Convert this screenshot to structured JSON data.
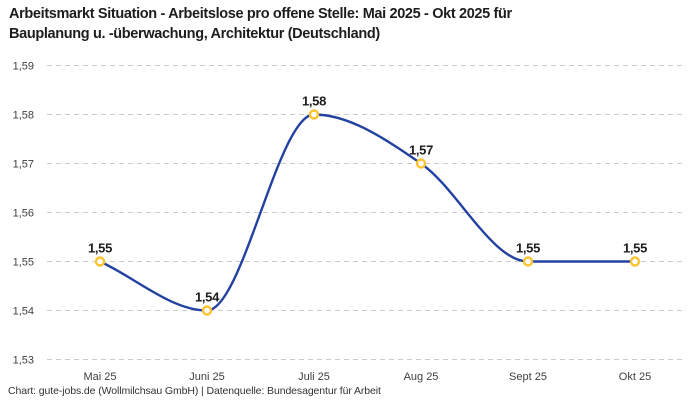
{
  "title_lines": [
    "Arbeitsmarkt Situation - Arbeitslose pro offene Stelle: Mai 2025 - Okt 2025 für",
    "Bauplanung u. -überwachung, Architektur (Deutschland)"
  ],
  "footer": {
    "text": "Chart: gute-jobs.de (Wollmilchsau GmbH) | Datenquelle: Bundesagentur für Arbeit"
  },
  "chart_data": {
    "type": "line",
    "title": "Arbeitsmarkt Situation - Arbeitslose pro offene Stelle: Mai 2025 - Okt 2025 für Bauplanung u. -überwachung, Architektur (Deutschland)",
    "categories": [
      "Mai 25",
      "Juni 25",
      "Juli 25",
      "Aug 25",
      "Sept 25",
      "Okt 25"
    ],
    "values": [
      1.55,
      1.54,
      1.58,
      1.57,
      1.55,
      1.55
    ],
    "point_labels": [
      "1,55",
      "1,54",
      "1,58",
      "1,57",
      "1,55",
      "1,55"
    ],
    "ylim": [
      1.53,
      1.59
    ],
    "yticks": [
      1.59,
      1.58,
      1.57,
      1.56,
      1.55,
      1.54,
      1.53
    ],
    "ytick_labels": [
      "1,59",
      "1,58",
      "1,57",
      "1,56",
      "1,55",
      "1,54",
      "1,53"
    ],
    "xlabel": "",
    "ylabel": "",
    "legend": "none",
    "grid": "horizontal-dashed",
    "curve": "monotone",
    "colors": {
      "line": "#2341a0",
      "marker_ring": "#fcc330",
      "marker_fill": "#ffffff",
      "grid": "#cbcbcb",
      "title_text": "#1d1d1d",
      "tick_text": "#3f3f3f",
      "point_label_text": "#1c1c1c"
    }
  }
}
